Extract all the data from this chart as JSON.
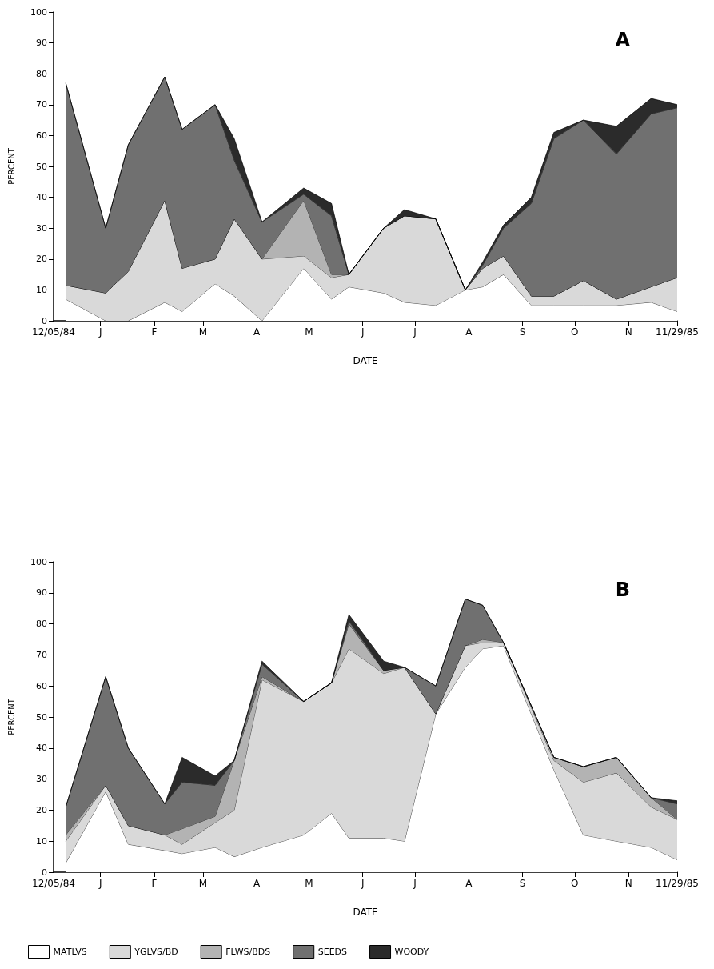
{
  "chart_data": [
    {
      "type": "area",
      "title": "A",
      "xlabel": "DATE",
      "ylabel": "PERCENT",
      "stacked": true,
      "legend": false,
      "grid": false,
      "marker": "none",
      "x": [
        "1984-12-12",
        "1985-01-04",
        "1985-01-17",
        "1985-02-07",
        "1985-02-17",
        "1985-03-08",
        "1985-03-19",
        "1985-04-04",
        "1985-04-28",
        "1985-05-14",
        "1985-05-24",
        "1985-06-13",
        "1985-06-25",
        "1985-07-13",
        "1985-07-30",
        "1985-08-09",
        "1985-08-21",
        "1985-09-06",
        "1985-09-19",
        "1985-10-06",
        "1985-10-25",
        "1985-11-14",
        "1985-11-29"
      ],
      "xlim": [
        "1984-12-05",
        "1985-11-29"
      ],
      "xticks": [
        {
          "value": "1984-12-05",
          "label": "12/05/84"
        },
        {
          "value": "1985-01-01",
          "label": "J"
        },
        {
          "value": "1985-02-01",
          "label": "F"
        },
        {
          "value": "1985-03-01",
          "label": "M"
        },
        {
          "value": "1985-04-01",
          "label": "A"
        },
        {
          "value": "1985-05-01",
          "label": "M"
        },
        {
          "value": "1985-06-01",
          "label": "J"
        },
        {
          "value": "1985-07-01",
          "label": "J"
        },
        {
          "value": "1985-08-01",
          "label": "A"
        },
        {
          "value": "1985-09-01",
          "label": "S"
        },
        {
          "value": "1985-10-01",
          "label": "O"
        },
        {
          "value": "1985-11-01",
          "label": "N"
        },
        {
          "value": "1985-11-29",
          "label": "11/29/85"
        }
      ],
      "ylim": [
        0,
        100
      ],
      "yticks": [
        0,
        10,
        20,
        30,
        40,
        50,
        60,
        70,
        80,
        90,
        100
      ],
      "series": [
        {
          "color": "#ffffff",
          "values": [
            7,
            0,
            0,
            6,
            3,
            12,
            8,
            0,
            17,
            7,
            11,
            9,
            6,
            5,
            10,
            11,
            15,
            5,
            5,
            5,
            5,
            6,
            3
          ]
        },
        {
          "color": "#d9d9d9",
          "values": [
            4.5,
            9,
            16,
            33,
            14,
            8,
            25,
            20,
            4,
            7,
            4,
            21,
            28,
            28,
            0,
            6,
            6,
            3,
            3,
            8,
            2,
            5,
            11
          ]
        },
        {
          "color": "#b3b3b3",
          "values": [
            0,
            0,
            0,
            0,
            0,
            0,
            0,
            0,
            18,
            1,
            0,
            0,
            0,
            0,
            0,
            0,
            0,
            0,
            0,
            0,
            0,
            0,
            0
          ]
        },
        {
          "color": "#707070",
          "values": [
            65.5,
            21,
            41,
            40,
            45,
            50,
            19,
            12,
            2,
            19,
            0,
            0,
            0,
            0,
            0,
            1,
            9,
            30,
            51,
            52,
            47,
            56,
            55
          ]
        },
        {
          "color": "#2b2b2b",
          "values": [
            0,
            0,
            0,
            0,
            0,
            0,
            7,
            0,
            2,
            4,
            0,
            0,
            2,
            0,
            0,
            1,
            1,
            2,
            2,
            0,
            9,
            5,
            1
          ]
        }
      ]
    },
    {
      "type": "area",
      "title": "B",
      "xlabel": "DATE",
      "ylabel": "PERCENT",
      "stacked": true,
      "legend": "bottom",
      "grid": false,
      "marker": "none",
      "x": [
        "1984-12-12",
        "1985-01-04",
        "1985-01-17",
        "1985-02-07",
        "1985-02-17",
        "1985-03-08",
        "1985-03-19",
        "1985-04-04",
        "1985-04-28",
        "1985-05-14",
        "1985-05-24",
        "1985-06-13",
        "1985-06-25",
        "1985-07-13",
        "1985-07-30",
        "1985-08-09",
        "1985-08-21",
        "1985-09-19",
        "1985-10-06",
        "1985-10-25",
        "1985-11-14",
        "1985-11-29"
      ],
      "xlim": [
        "1984-12-05",
        "1985-11-29"
      ],
      "xticks": [
        {
          "value": "1984-12-05",
          "label": "12/05/84"
        },
        {
          "value": "1985-01-01",
          "label": "J"
        },
        {
          "value": "1985-02-01",
          "label": "F"
        },
        {
          "value": "1985-03-01",
          "label": "M"
        },
        {
          "value": "1985-04-01",
          "label": "A"
        },
        {
          "value": "1985-05-01",
          "label": "M"
        },
        {
          "value": "1985-06-01",
          "label": "J"
        },
        {
          "value": "1985-07-01",
          "label": "J"
        },
        {
          "value": "1985-08-01",
          "label": "A"
        },
        {
          "value": "1985-09-01",
          "label": "S"
        },
        {
          "value": "1985-10-01",
          "label": "O"
        },
        {
          "value": "1985-11-01",
          "label": "N"
        },
        {
          "value": "1985-11-29",
          "label": "11/29/85"
        }
      ],
      "ylim": [
        0,
        100
      ],
      "yticks": [
        0,
        10,
        20,
        30,
        40,
        50,
        60,
        70,
        80,
        90,
        100
      ],
      "series": [
        {
          "name": "MATLVS",
          "color": "#ffffff",
          "values": [
            3,
            26,
            9,
            7,
            6,
            8,
            5,
            8,
            12,
            19,
            11,
            11,
            10,
            51,
            66,
            72,
            73,
            33,
            12,
            10,
            8,
            4
          ]
        },
        {
          "name": "YGLVS/BD",
          "color": "#d9d9d9",
          "values": [
            7,
            2,
            6,
            5,
            3,
            8,
            15,
            54,
            43,
            42,
            61,
            53,
            56,
            0,
            7,
            2,
            1,
            3,
            17,
            22,
            13,
            13
          ]
        },
        {
          "name": "FLWS/BDS",
          "color": "#b3b3b3",
          "values": [
            2,
            0,
            0,
            0,
            5,
            2,
            16,
            1,
            0,
            0,
            8,
            1,
            0,
            0,
            0,
            1,
            0,
            1,
            5,
            5,
            3,
            0
          ]
        },
        {
          "name": "SEEDS",
          "color": "#707070",
          "values": [
            9,
            35,
            25,
            10,
            15,
            10,
            0,
            4,
            0,
            0,
            1,
            0,
            0,
            9,
            15,
            11,
            0,
            0,
            0,
            0,
            0,
            5
          ]
        },
        {
          "name": "WOODY",
          "color": "#2b2b2b",
          "values": [
            0,
            0,
            0,
            0,
            8,
            3,
            0,
            1,
            0,
            0,
            2,
            3,
            0,
            0,
            0,
            0,
            0,
            0,
            0,
            0,
            0,
            1
          ]
        }
      ]
    }
  ]
}
